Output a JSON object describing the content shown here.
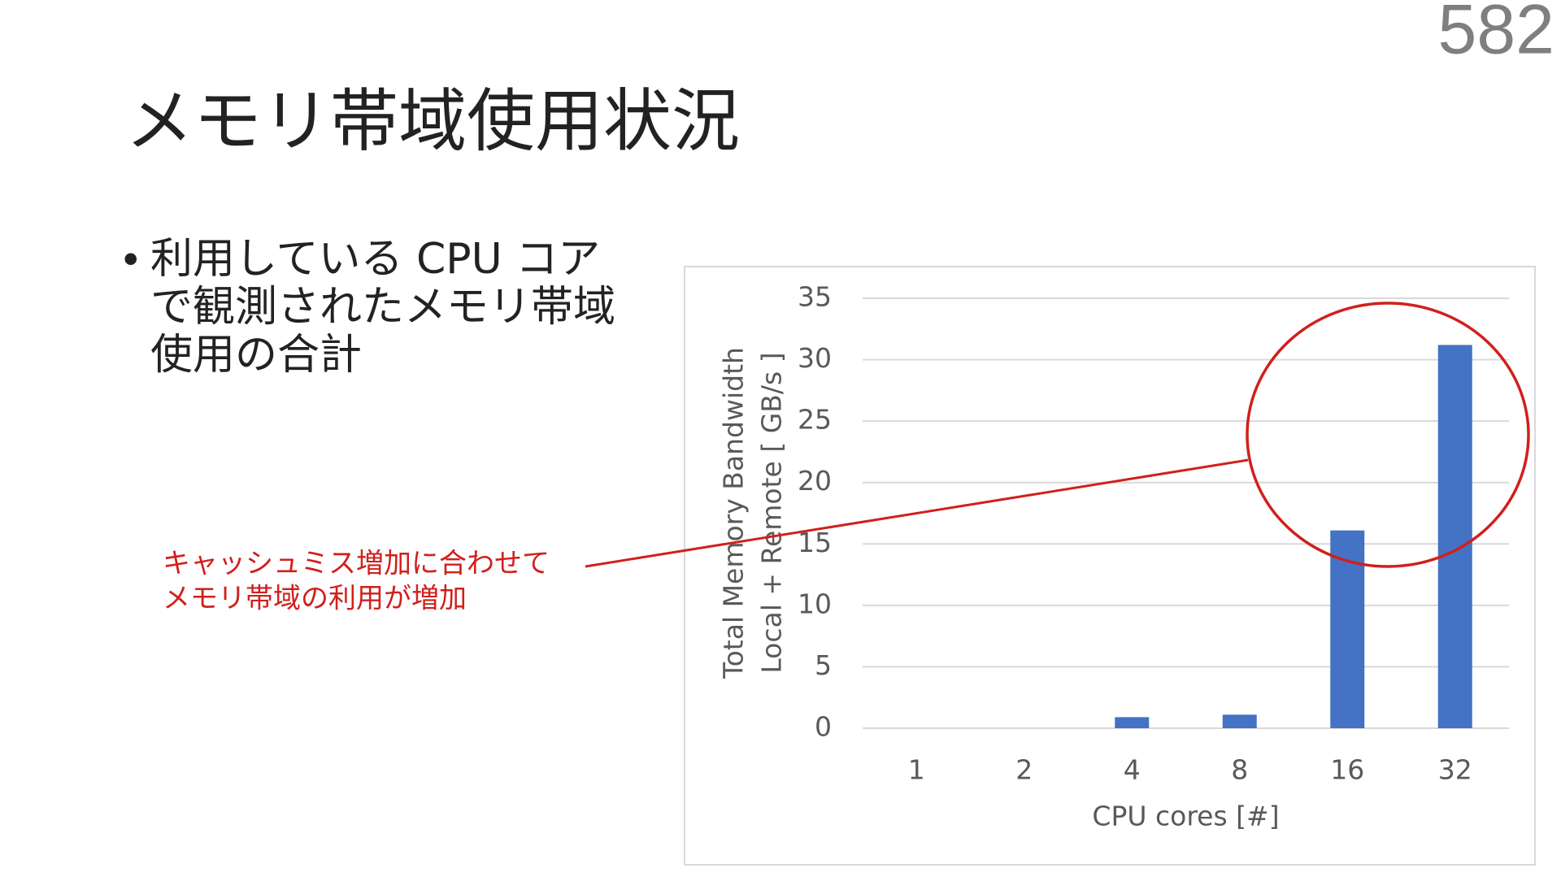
{
  "page_number": "582",
  "title": "メモリ帯域使用状況",
  "bullet": {
    "lines": [
      "利用している CPU コア",
      "で観測されたメモリ帯域",
      "使用の合計"
    ]
  },
  "annotation": {
    "lines": [
      "キャッシュミス増加に合わせて",
      "メモリ帯域の利用が増加"
    ]
  },
  "chart_data": {
    "type": "bar",
    "categories": [
      "1",
      "2",
      "4",
      "8",
      "16",
      "32"
    ],
    "values": [
      0,
      0,
      0.9,
      1.1,
      16.1,
      31.2
    ],
    "color": "#4472c4",
    "ylim": [
      0,
      35
    ],
    "yticks": [
      0,
      5,
      10,
      15,
      20,
      25,
      30,
      35
    ],
    "grid": true,
    "x_label": "CPU cores [#]",
    "y_label": [
      "Total Memory Bandwidth",
      "Local + Remote [ GB/s ]"
    ]
  }
}
